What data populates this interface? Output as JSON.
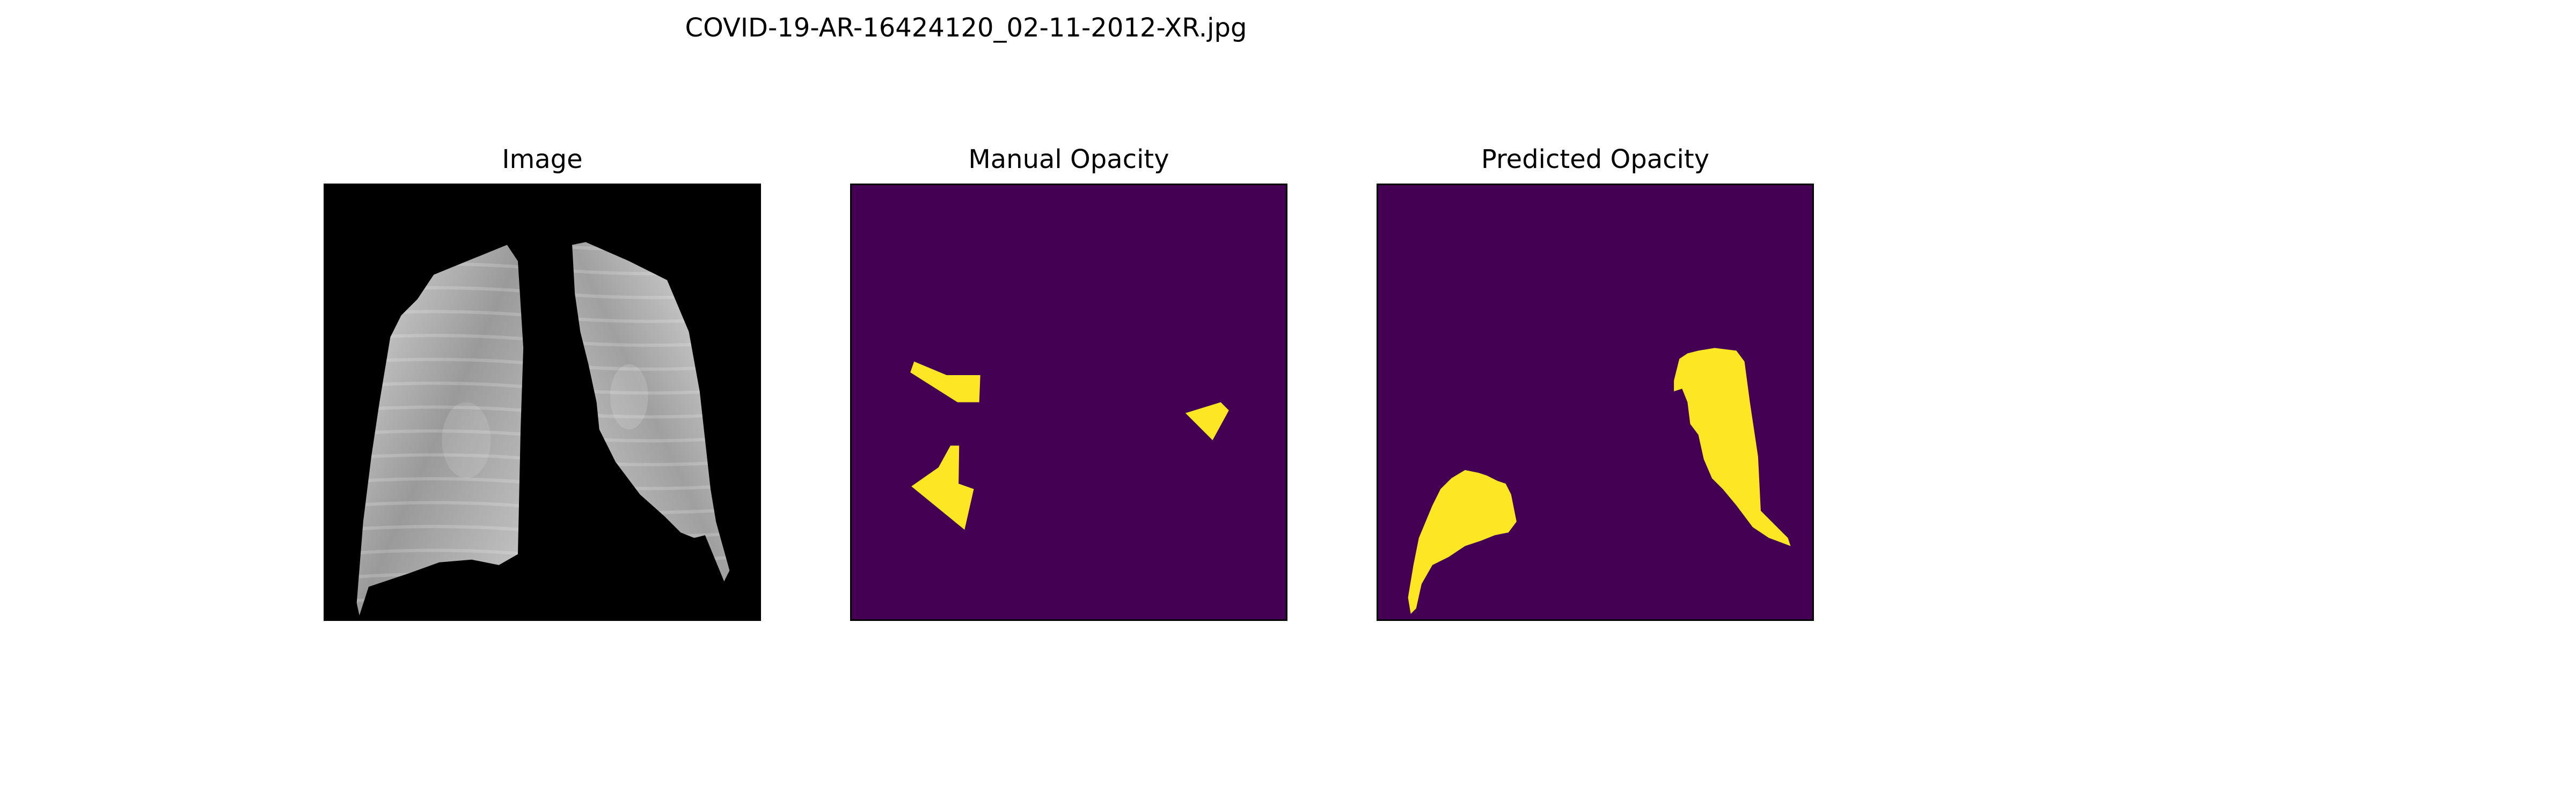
{
  "figure": {
    "title": "COVID-19-AR-16424120_02-11-2012-XR.jpg"
  },
  "panels": [
    {
      "title": "Image"
    },
    {
      "title": "Manual Opacity"
    },
    {
      "title": "Predicted Opacity"
    }
  ],
  "colors": {
    "mask_background": "#440154",
    "mask_foreground": "#FDE725",
    "image_background": "#000000"
  }
}
